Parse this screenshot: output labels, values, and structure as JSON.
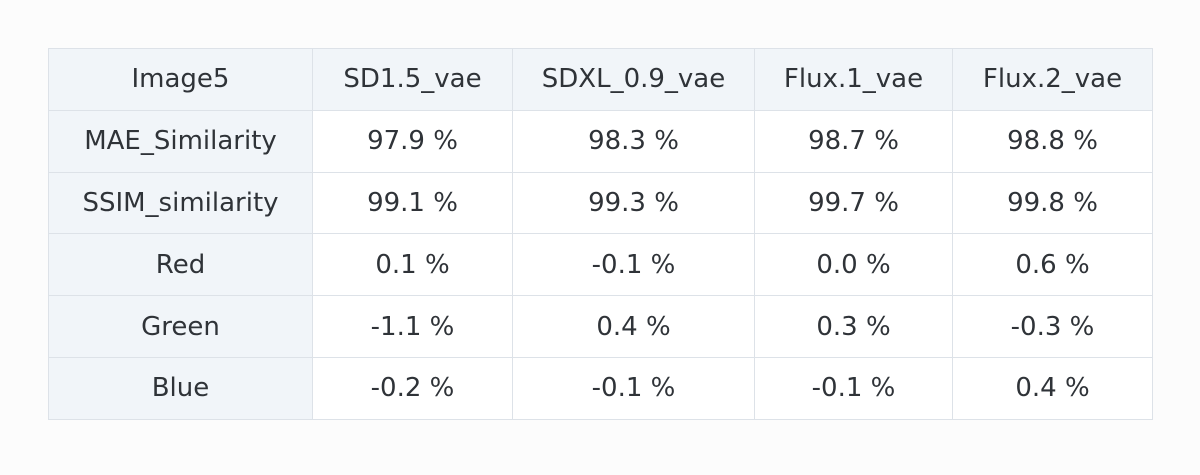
{
  "table": {
    "header": [
      "Image5",
      "SD1.5_vae",
      "SDXL_0.9_vae",
      "Flux.1_vae",
      "Flux.2_vae"
    ],
    "rows": [
      [
        "MAE_Similarity",
        "97.9 %",
        "98.3 %",
        "98.7 %",
        "98.8 %"
      ],
      [
        "SSIM_similarity",
        "99.1 %",
        "99.3 %",
        "99.7 %",
        "99.8 %"
      ],
      [
        "Red",
        "0.1 %",
        "-0.1 %",
        "0.0 %",
        "0.6 %"
      ],
      [
        "Green",
        "-1.1 %",
        "0.4 %",
        "0.3 %",
        "-0.3 %"
      ],
      [
        "Blue",
        "-0.2 %",
        "-0.1 %",
        "-0.1 %",
        "0.4 %"
      ]
    ]
  }
}
